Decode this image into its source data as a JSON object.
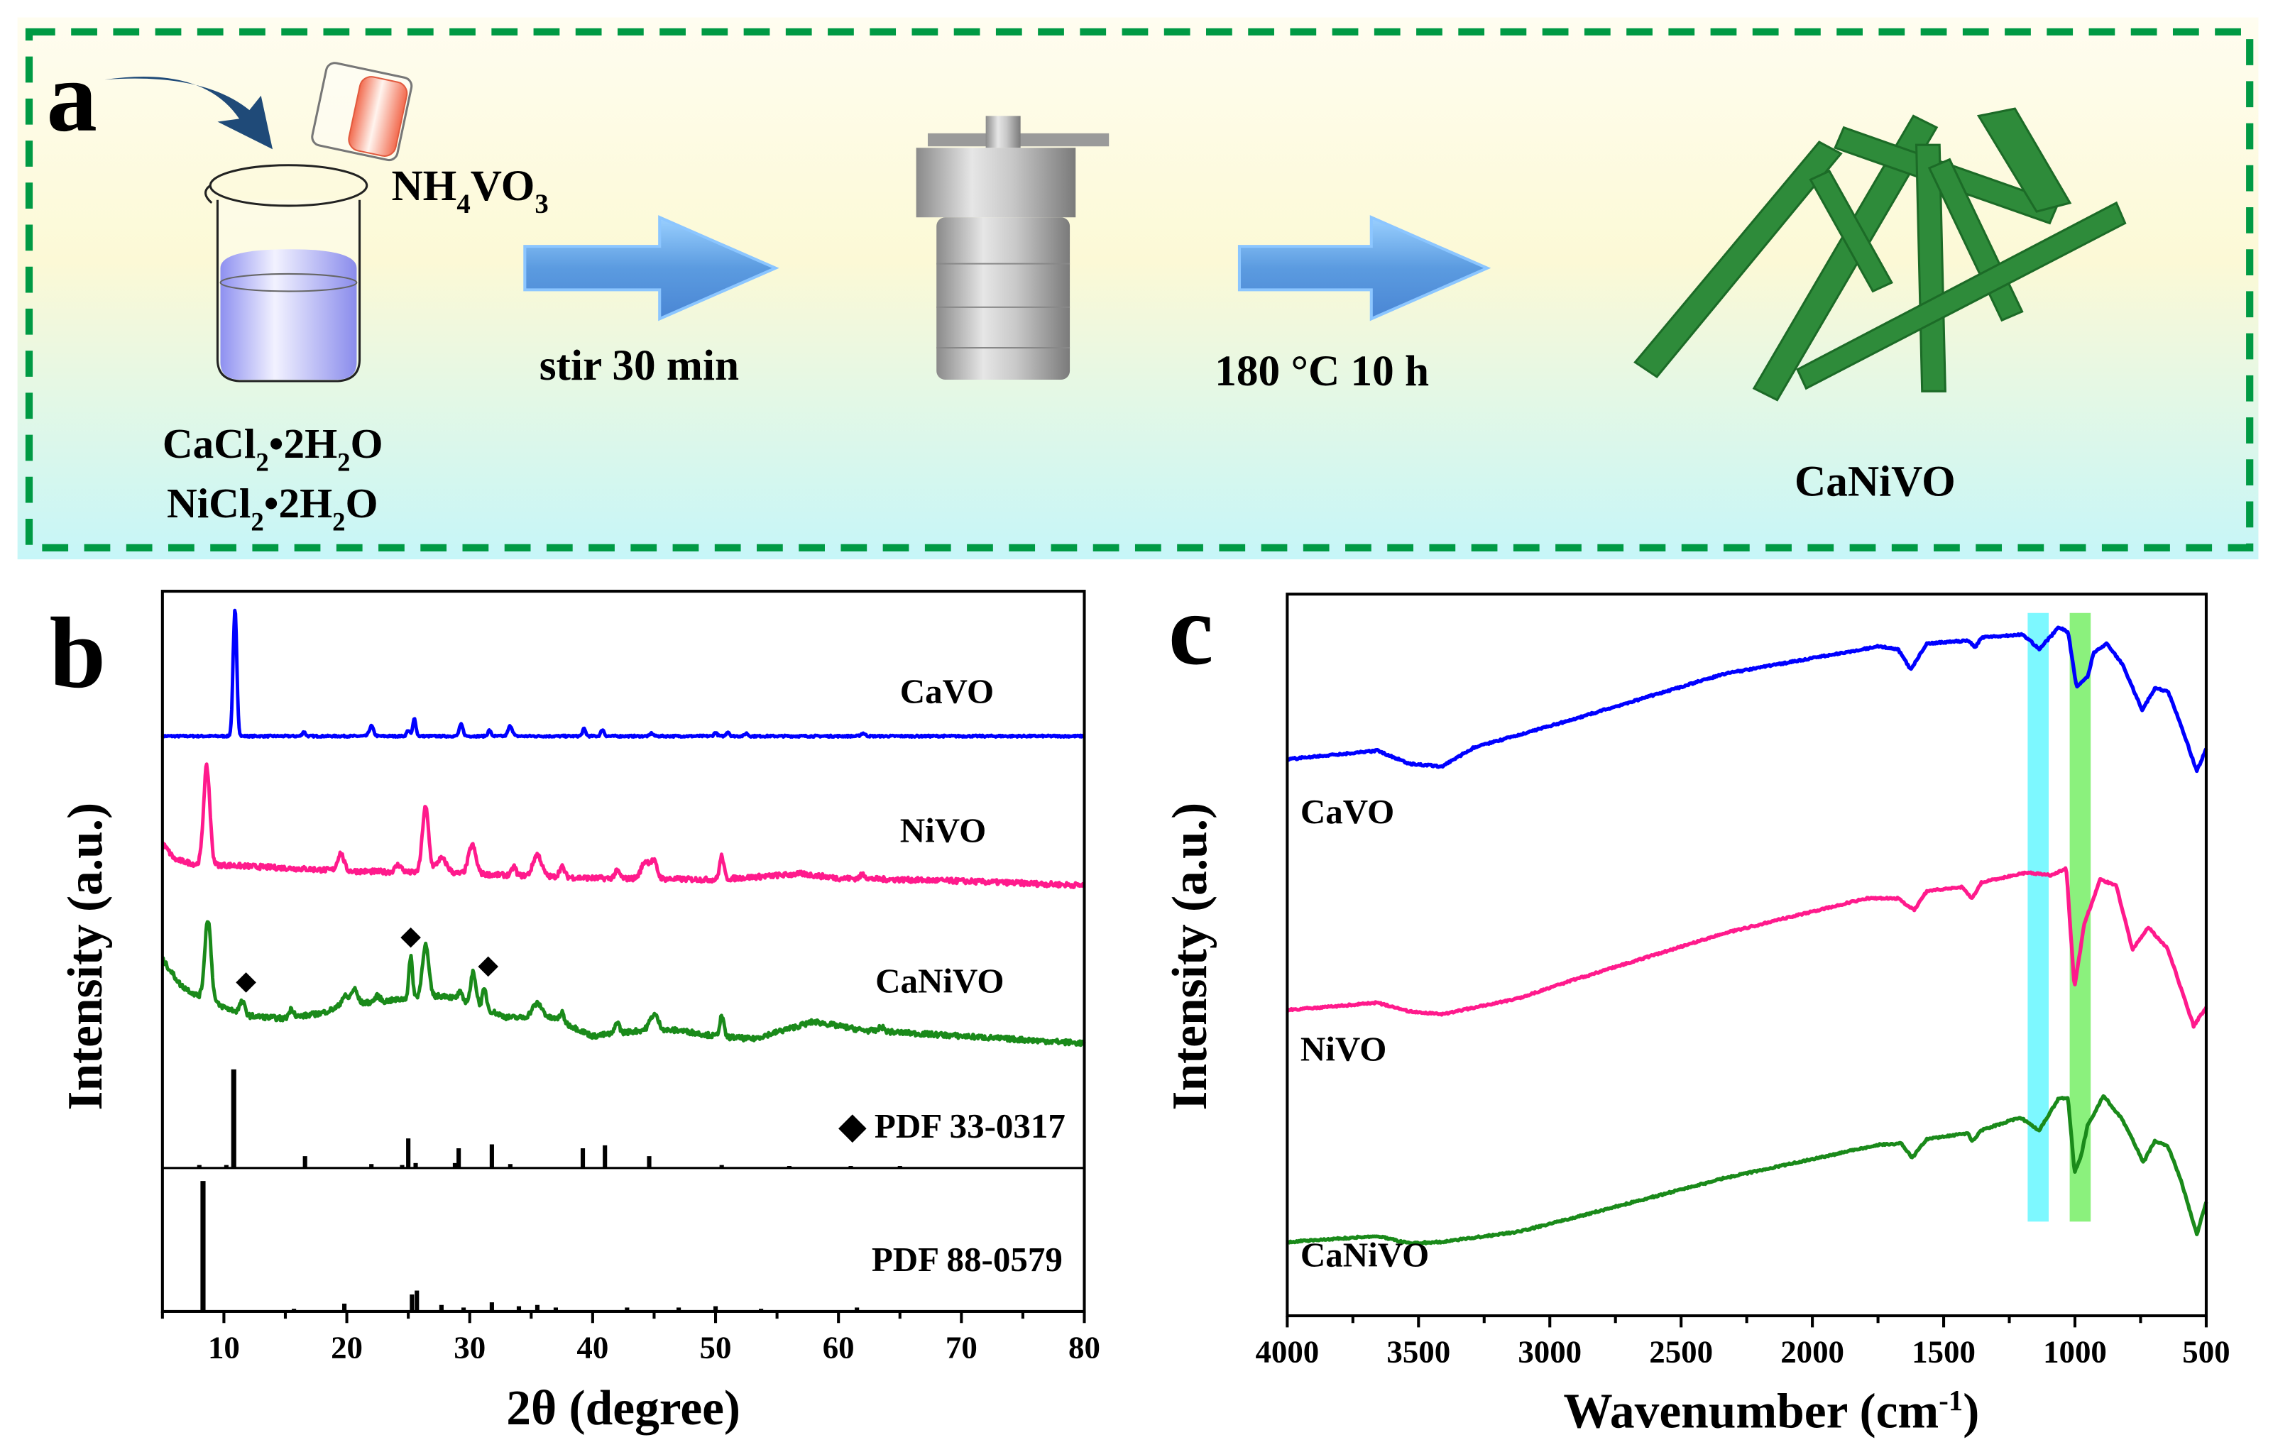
{
  "panel_a": {
    "letter": "a",
    "reagent_top": [
      "NH",
      "4",
      "VO",
      "3"
    ],
    "reagent_line1": [
      "CaCl",
      "2",
      "•2H",
      "2",
      "O"
    ],
    "reagent_line2": [
      "NiCl",
      "2",
      "•2H",
      "2",
      "O"
    ],
    "step1": "stir 30 min",
    "step2": "180 °C 10 h",
    "product": "CaNiVO",
    "colors": {
      "border": "#009a44",
      "rods": "#2e8b3a",
      "arrow": "#5b9be0",
      "liquid": "#9a9cf0",
      "pour": "#f26b4f"
    }
  },
  "chart_data": [
    {
      "panel": "b",
      "type": "line",
      "xlabel": "2θ (degree)",
      "ylabel": "Intensity (a.u.)",
      "xlim": [
        5,
        80
      ],
      "ylim": [
        0,
        49.7
      ],
      "xticks": [
        "10",
        "20",
        "30",
        "40",
        "50",
        "60",
        "70",
        "80"
      ],
      "series": [
        {
          "name": "CaVO",
          "color": "#0000ff",
          "baseline": [
            [
              5,
              39.7
            ],
            [
              80,
              39.7
            ]
          ],
          "peaks": [
            [
              10.9,
              8.7,
              0.35
            ],
            [
              16.5,
              0.3,
              0.3
            ],
            [
              22,
              0.7,
              0.4
            ],
            [
              25,
              0.4,
              0.3
            ],
            [
              25.5,
              1.2,
              0.3
            ],
            [
              29.3,
              0.8,
              0.35
            ],
            [
              31.6,
              0.4,
              0.3
            ],
            [
              33.3,
              0.7,
              0.4
            ],
            [
              39.3,
              0.5,
              0.3
            ],
            [
              40.8,
              0.45,
              0.3
            ],
            [
              44.8,
              0.2,
              0.3
            ],
            [
              50,
              0.25,
              0.3
            ],
            [
              51,
              0.3,
              0.3
            ],
            [
              52.5,
              0.2,
              0.3
            ],
            [
              62,
              0.2,
              0.4
            ]
          ]
        },
        {
          "name": "NiVO",
          "color": "#ff1a8c",
          "baseline": [
            [
              5,
              32.3
            ],
            [
              6,
              31.2
            ],
            [
              8,
              30.8
            ],
            [
              10,
              30.8
            ],
            [
              15,
              30.6
            ],
            [
              20,
              30.4
            ],
            [
              30,
              30.2
            ],
            [
              40,
              29.9
            ],
            [
              50,
              29.8
            ],
            [
              57,
              30.2
            ],
            [
              60,
              29.9
            ],
            [
              70,
              29.7
            ],
            [
              80,
              29.4
            ]
          ],
          "peaks": [
            [
              8.6,
              6.8,
              0.6
            ],
            [
              19.5,
              1.2,
              0.6
            ],
            [
              24.2,
              0.5,
              0.6
            ],
            [
              26.4,
              4.5,
              0.6
            ],
            [
              27.7,
              1.0,
              1.0
            ],
            [
              30.2,
              2.0,
              0.7
            ],
            [
              33.6,
              0.6,
              0.4
            ],
            [
              35.5,
              1.5,
              0.8
            ],
            [
              37.5,
              0.7,
              0.5
            ],
            [
              42,
              0.5,
              0.5
            ],
            [
              44.3,
              1.2,
              0.8
            ],
            [
              45,
              1.1,
              0.6
            ],
            [
              50.5,
              1.6,
              0.4
            ],
            [
              62,
              0.3,
              0.5
            ]
          ]
        },
        {
          "name": "CaNiVO",
          "color": "#1a8a1a",
          "baseline": [
            [
              5,
              24.3
            ],
            [
              6.5,
              22.5
            ],
            [
              8,
              21.7
            ],
            [
              10,
              21.0
            ],
            [
              12,
              20.4
            ],
            [
              15,
              20.2
            ],
            [
              18,
              20.6
            ],
            [
              20,
              21.2
            ],
            [
              23,
              21.4
            ],
            [
              25,
              21.6
            ],
            [
              28,
              21.8
            ],
            [
              30,
              21.3
            ],
            [
              33,
              20.3
            ],
            [
              37,
              20.2
            ],
            [
              40,
              19.0
            ],
            [
              44,
              19.4
            ],
            [
              47,
              19.4
            ],
            [
              50,
              19.0
            ],
            [
              53,
              18.8
            ],
            [
              58,
              20.0
            ],
            [
              62,
              19.4
            ],
            [
              70,
              19.0
            ],
            [
              80,
              18.5
            ]
          ],
          "peaks": [
            [
              8.7,
              5.6,
              0.6
            ],
            [
              11.5,
              0.8,
              0.5
            ],
            [
              15.5,
              0.6,
              0.5
            ],
            [
              19.8,
              0.6,
              0.6
            ],
            [
              20.6,
              1.0,
              0.6
            ],
            [
              22.5,
              0.4,
              0.5
            ],
            [
              25.2,
              2.8,
              0.35
            ],
            [
              26.4,
              3.6,
              0.6
            ],
            [
              29.2,
              0.5,
              0.4
            ],
            [
              30.3,
              2.2,
              0.5
            ],
            [
              31.2,
              1.3,
              0.4
            ],
            [
              35.5,
              1.0,
              1.0
            ],
            [
              37.5,
              0.6,
              0.4
            ],
            [
              42,
              0.8,
              0.4
            ],
            [
              45,
              1.1,
              0.8
            ],
            [
              50.5,
              1.4,
              0.4
            ],
            [
              63.5,
              0.3,
              0.5
            ]
          ],
          "markers": [
            [
              11.8,
              22.7
            ],
            [
              25.2,
              25.8
            ],
            [
              31.5,
              23.8
            ]
          ]
        }
      ],
      "series_labels": [
        {
          "text": "CaVO",
          "at": [
            65,
            42.0
          ]
        },
        {
          "text": "NiVO",
          "at": [
            65,
            32.4
          ]
        },
        {
          "text": "CaNiVO",
          "at": [
            63,
            22.0
          ]
        }
      ],
      "references": [
        {
          "name": "PDF 33-0317",
          "label": "◆ PDF 33-0317",
          "baseline": 9.9,
          "full_scale": 6.8,
          "sticks": [
            [
              8,
              3
            ],
            [
              10.2,
              3
            ],
            [
              10.8,
              100
            ],
            [
              16.6,
              12
            ],
            [
              22,
              4
            ],
            [
              24.5,
              3
            ],
            [
              25,
              30
            ],
            [
              25.6,
              5
            ],
            [
              28.8,
              5
            ],
            [
              29.1,
              20
            ],
            [
              31.8,
              24
            ],
            [
              33.3,
              4
            ],
            [
              39.2,
              20
            ],
            [
              41,
              23
            ],
            [
              44.6,
              12
            ],
            [
              50.5,
              3
            ],
            [
              56,
              2
            ],
            [
              61,
              2
            ],
            [
              65,
              2
            ]
          ]
        },
        {
          "name": "PDF 88-0579",
          "label": "PDF 88-0579",
          "baseline": 0,
          "full_scale": 9.0,
          "sticks": [
            [
              8.3,
              100
            ],
            [
              15.7,
              2
            ],
            [
              19.8,
              6
            ],
            [
              25.3,
              13
            ],
            [
              25.7,
              16
            ],
            [
              27.7,
              5
            ],
            [
              29.5,
              3
            ],
            [
              31.8,
              7
            ],
            [
              34,
              4
            ],
            [
              35.5,
              5
            ],
            [
              37,
              3
            ],
            [
              42.8,
              3
            ],
            [
              47,
              3
            ],
            [
              50,
              4
            ],
            [
              53.7,
              2
            ],
            [
              61.5,
              3
            ]
          ]
        }
      ]
    },
    {
      "panel": "c",
      "type": "line",
      "xlabel": "Wavenumber (cm",
      "xlabel_sup": "-1",
      "xlabel_end": ")",
      "ylabel": "Intensity (a.u.)",
      "xlim": [
        4000,
        500
      ],
      "ylim": [
        0,
        49.8
      ],
      "xticks": [
        "4000",
        "3500",
        "3000",
        "2500",
        "2000",
        "1500",
        "1000",
        "500"
      ],
      "highlight_bands": [
        {
          "range": [
            1180,
            1100
          ],
          "color": "#66f7ff"
        },
        {
          "range": [
            1020,
            940
          ],
          "color": "#77ee66"
        }
      ],
      "series": [
        {
          "name": "CaVO",
          "color": "#0000ff",
          "points": [
            [
              4000,
              38.4
            ],
            [
              3657,
              39.0
            ],
            [
              3535,
              38.1
            ],
            [
              3412,
              37.9
            ],
            [
              3290,
              39.2
            ],
            [
              2923,
              41.1
            ],
            [
              2335,
              44.3
            ],
            [
              1748,
              46.2
            ],
            [
              1674,
              46.0
            ],
            [
              1625,
              44.6
            ],
            [
              1564,
              46.4
            ],
            [
              1405,
              46.6
            ],
            [
              1380,
              46.1
            ],
            [
              1356,
              46.8
            ],
            [
              1197,
              47.0
            ],
            [
              1136,
              46.0
            ],
            [
              1062,
              47.5
            ],
            [
              1026,
              47.2
            ],
            [
              994,
              43.4
            ],
            [
              952,
              44.1
            ],
            [
              928,
              45.8
            ],
            [
              879,
              46.4
            ],
            [
              818,
              44.9
            ],
            [
              744,
              41.8
            ],
            [
              695,
              43.3
            ],
            [
              646,
              43.1
            ],
            [
              609,
              41.4
            ],
            [
              536,
              37.6
            ],
            [
              500,
              39.1
            ]
          ]
        },
        {
          "name": "NiVO",
          "color": "#ff1a8c",
          "points": [
            [
              4000,
              21.1
            ],
            [
              3657,
              21.6
            ],
            [
              3535,
              21.0
            ],
            [
              3412,
              20.8
            ],
            [
              3119,
              21.9
            ],
            [
              2923,
              23.1
            ],
            [
              2335,
              26.4
            ],
            [
              1797,
              28.8
            ],
            [
              1674,
              28.8
            ],
            [
              1613,
              28.0
            ],
            [
              1564,
              29.3
            ],
            [
              1430,
              29.6
            ],
            [
              1393,
              28.8
            ],
            [
              1356,
              29.9
            ],
            [
              1184,
              30.6
            ],
            [
              1087,
              30.4
            ],
            [
              1033,
              30.9
            ],
            [
              1002,
              22.6
            ],
            [
              965,
              27.0
            ],
            [
              904,
              30.1
            ],
            [
              843,
              29.7
            ],
            [
              781,
              25.3
            ],
            [
              720,
              26.8
            ],
            [
              646,
              25.3
            ],
            [
              548,
              20.0
            ],
            [
              500,
              21.3
            ]
          ]
        },
        {
          "name": "CaNiVO",
          "color": "#1a8a1a",
          "points": [
            [
              4000,
              5.1
            ],
            [
              3657,
              5.5
            ],
            [
              3535,
              5.0
            ],
            [
              3412,
              5.1
            ],
            [
              3119,
              5.8
            ],
            [
              2923,
              6.7
            ],
            [
              2335,
              9.5
            ],
            [
              1748,
              11.8
            ],
            [
              1662,
              11.9
            ],
            [
              1620,
              10.9
            ],
            [
              1564,
              12.2
            ],
            [
              1405,
              12.6
            ],
            [
              1393,
              12.0
            ],
            [
              1356,
              12.8
            ],
            [
              1209,
              13.7
            ],
            [
              1136,
              12.8
            ],
            [
              1062,
              15.0
            ],
            [
              1026,
              15.0
            ],
            [
              1002,
              9.9
            ],
            [
              977,
              11.0
            ],
            [
              952,
              13.1
            ],
            [
              891,
              15.2
            ],
            [
              818,
              13.5
            ],
            [
              739,
              10.6
            ],
            [
              695,
              12.1
            ],
            [
              646,
              11.7
            ],
            [
              597,
              9.4
            ],
            [
              536,
              5.6
            ],
            [
              500,
              7.9
            ]
          ]
        }
      ],
      "series_labels": [
        {
          "text": "CaVO",
          "at": [
            3950,
            34.0
          ]
        },
        {
          "text": "NiVO",
          "at": [
            3950,
            17.6
          ]
        },
        {
          "text": "CaNiVO",
          "at": [
            3950,
            3.4
          ]
        }
      ]
    }
  ],
  "panel_letters": {
    "b": "b",
    "c": "c"
  }
}
